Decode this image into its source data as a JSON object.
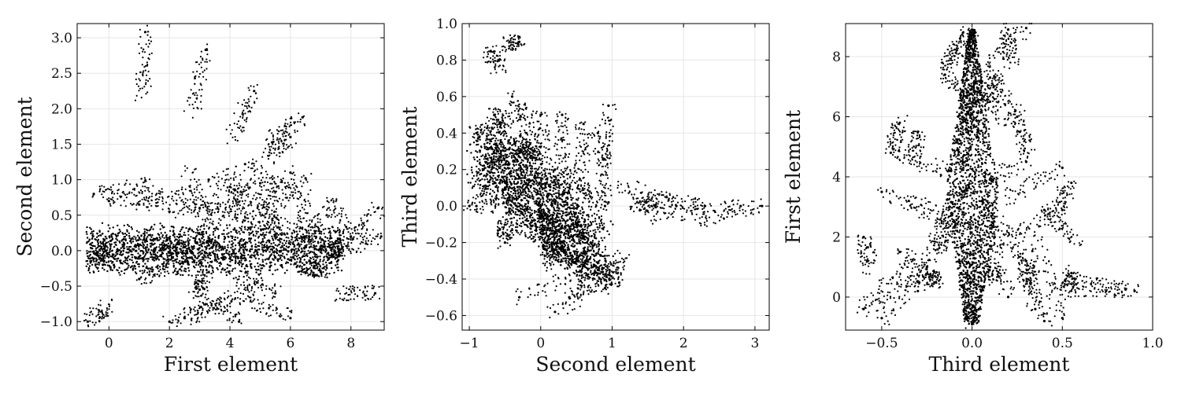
{
  "chart_data": [
    {
      "type": "scatter",
      "xlabel": "First element",
      "ylabel": "Second element",
      "xlim": [
        -1.05,
        9.1
      ],
      "ylim": [
        -1.12,
        3.2
      ],
      "xticks": [
        0,
        2,
        4,
        6,
        8
      ],
      "xtick_labels": [
        "0",
        "2",
        "4",
        "6",
        "8"
      ],
      "yticks": [
        -1.0,
        -0.5,
        0.0,
        0.5,
        1.0,
        1.5,
        2.0,
        2.5,
        3.0
      ],
      "ytick_labels": [
        "−1.0",
        "−0.5",
        "0.0",
        "0.5",
        "1.0",
        "1.5",
        "2.0",
        "2.5",
        "3.0"
      ],
      "grid": true,
      "color": "#000000",
      "points": [
        [
          1.2,
          3.08
        ],
        [
          3.2,
          2.83
        ],
        [
          4.8,
          2.25
        ],
        [
          6.4,
          1.88
        ],
        [
          6.0,
          1.6
        ],
        [
          -0.5,
          0.8
        ],
        [
          0.0,
          0.7
        ],
        [
          1.0,
          0.65
        ],
        [
          2.0,
          0.55
        ],
        [
          3.0,
          0.6
        ],
        [
          3.3,
          1.0
        ],
        [
          4.0,
          0.9
        ],
        [
          4.5,
          1.22
        ],
        [
          5.0,
          0.95
        ],
        [
          6.0,
          1.1
        ],
        [
          6.5,
          1.02
        ],
        [
          7.2,
          0.5
        ],
        [
          8.9,
          0.6
        ],
        [
          8.8,
          -0.6
        ],
        [
          9.0,
          0.2
        ],
        [
          -0.7,
          -1.0
        ],
        [
          2.0,
          -1.0
        ],
        [
          2.5,
          -0.95
        ],
        [
          4.3,
          -1.0
        ],
        [
          6.0,
          -0.95
        ],
        [
          5.5,
          -0.6
        ],
        [
          3.0,
          -0.55
        ],
        [
          1.0,
          -0.4
        ],
        [
          7.0,
          -0.3
        ],
        [
          7.6,
          0.0
        ],
        [
          0.5,
          0.1
        ],
        [
          1.5,
          -0.1
        ],
        [
          2.5,
          0.05
        ],
        [
          3.5,
          -0.05
        ],
        [
          4.5,
          0.1
        ],
        [
          5.5,
          -0.1
        ],
        [
          6.5,
          0.05
        ],
        [
          8.0,
          0.2
        ],
        [
          8.5,
          0.1
        ],
        [
          -0.2,
          -0.2
        ]
      ]
    },
    {
      "type": "scatter",
      "xlabel": "Second element",
      "ylabel": "Third element",
      "xlim": [
        -1.1,
        3.2
      ],
      "ylim": [
        -0.68,
        1.0
      ],
      "xticks": [
        -1,
        0,
        1,
        2,
        3
      ],
      "xtick_labels": [
        "−1",
        "0",
        "1",
        "2",
        "3"
      ],
      "yticks": [
        -0.6,
        -0.4,
        -0.2,
        0.0,
        0.2,
        0.4,
        0.6,
        0.8,
        1.0
      ],
      "ytick_labels": [
        "−0.6",
        "−0.4",
        "−0.2",
        "0.0",
        "0.2",
        "0.4",
        "0.6",
        "0.8",
        "1.0"
      ],
      "grid": true,
      "color": "#000000",
      "points": [
        [
          -0.7,
          0.85
        ],
        [
          -0.65,
          0.5
        ],
        [
          -0.9,
          0.4
        ],
        [
          -0.6,
          0.3
        ],
        [
          -0.8,
          0.2
        ],
        [
          -0.5,
          0.1
        ],
        [
          -0.3,
          0.05
        ],
        [
          -0.4,
          0.6
        ],
        [
          -0.2,
          0.4
        ],
        [
          0.0,
          0.5
        ],
        [
          0.3,
          0.5
        ],
        [
          0.6,
          0.45
        ],
        [
          0.95,
          0.55
        ],
        [
          0.8,
          0.4
        ],
        [
          0.2,
          0.2
        ],
        [
          0.0,
          0.0
        ],
        [
          0.1,
          -0.1
        ],
        [
          0.3,
          -0.2
        ],
        [
          0.5,
          -0.3
        ],
        [
          0.8,
          -0.35
        ],
        [
          1.1,
          -0.42
        ],
        [
          0.9,
          -0.45
        ],
        [
          0.4,
          -0.5
        ],
        [
          0.2,
          -0.58
        ],
        [
          -0.3,
          -0.5
        ],
        [
          -0.6,
          -0.15
        ],
        [
          -0.9,
          0.0
        ],
        [
          -1.0,
          0.0
        ],
        [
          1.6,
          0.0
        ],
        [
          1.9,
          0.0
        ],
        [
          2.3,
          0.0
        ],
        [
          2.8,
          0.0
        ],
        [
          3.1,
          0.0
        ],
        [
          -0.3,
          0.9
        ],
        [
          0.9,
          0.0
        ],
        [
          0.95,
          0.02
        ],
        [
          -0.1,
          0.3
        ],
        [
          0.4,
          0.1
        ],
        [
          -0.5,
          -0.2
        ],
        [
          0.7,
          -0.2
        ]
      ]
    },
    {
      "type": "scatter",
      "xlabel": "Third element",
      "ylabel": "First element",
      "xlim": [
        -0.7,
        1.0
      ],
      "ylim": [
        -1.1,
        9.1
      ],
      "xticks": [
        -0.5,
        0.0,
        0.5,
        1.0
      ],
      "xtick_labels": [
        "−0.5",
        "0.0",
        "0.5",
        "1.0"
      ],
      "yticks": [
        0,
        2,
        4,
        6,
        8
      ],
      "ytick_labels": [
        "0",
        "2",
        "4",
        "6",
        "8"
      ],
      "grid": true,
      "color": "#000000",
      "points": [
        [
          0.0,
          8.9
        ],
        [
          -0.05,
          8.8
        ],
        [
          0.2,
          8.9
        ],
        [
          0.3,
          8.95
        ],
        [
          -0.15,
          7.4
        ],
        [
          0.1,
          7.3
        ],
        [
          0.0,
          7.0
        ],
        [
          -0.4,
          5.8
        ],
        [
          -0.3,
          5.5
        ],
        [
          0.25,
          6.0
        ],
        [
          -0.45,
          4.8
        ],
        [
          0.3,
          4.5
        ],
        [
          0.5,
          4.3
        ],
        [
          0.55,
          3.8
        ],
        [
          -0.5,
          3.5
        ],
        [
          -0.35,
          3.2
        ],
        [
          0.4,
          2.9
        ],
        [
          0.5,
          2.9
        ],
        [
          -0.6,
          2.0
        ],
        [
          -0.4,
          1.5
        ],
        [
          0.3,
          1.2
        ],
        [
          0.55,
          0.8
        ],
        [
          0.9,
          0.2
        ],
        [
          0.85,
          0.25
        ],
        [
          -0.6,
          -0.4
        ],
        [
          -0.5,
          -0.7
        ],
        [
          0.0,
          -0.9
        ],
        [
          0.4,
          -0.8
        ],
        [
          0.5,
          -0.7
        ],
        [
          -0.2,
          0.5
        ],
        [
          0.1,
          1.0
        ],
        [
          -0.1,
          2.5
        ],
        [
          0.05,
          3.5
        ],
        [
          -0.05,
          4.5
        ],
        [
          0.0,
          5.5
        ],
        [
          0.1,
          6.5
        ],
        [
          -0.25,
          1.0
        ],
        [
          0.2,
          0.0
        ],
        [
          -0.3,
          0.2
        ],
        [
          0.35,
          -0.4
        ]
      ]
    }
  ]
}
